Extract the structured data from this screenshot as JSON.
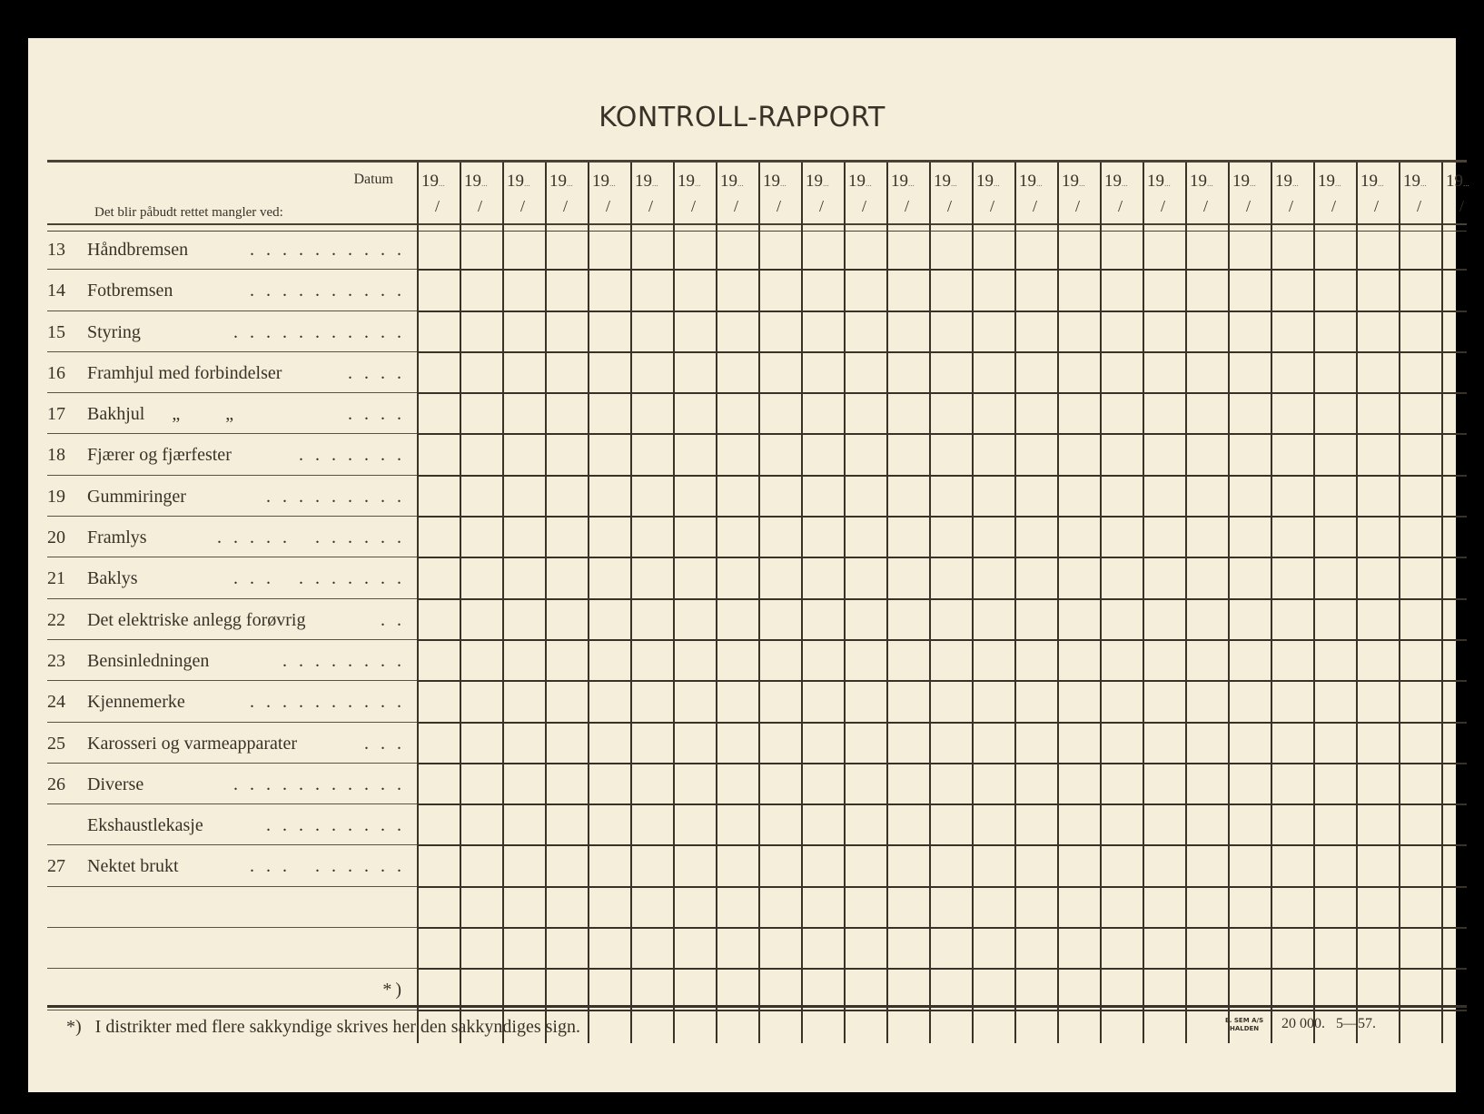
{
  "title": "KONTROLL-RAPPORT",
  "header": {
    "datum": "Datum",
    "subtitle": "Det blir påbudt rettet mangler ved:"
  },
  "date_columns": {
    "year_prefix": "19",
    "separator": "/",
    "count": 25
  },
  "rows": [
    {
      "num": "13",
      "label": "Håndbremsen",
      "dots": ". . . . . . . . . ."
    },
    {
      "num": "14",
      "label": "Fotbremsen",
      "dots": ". . . . . . . . . ."
    },
    {
      "num": "15",
      "label": "Styring",
      "dots": ". . . . . . . . . . ."
    },
    {
      "num": "16",
      "label": "Framhjul med forbindelser",
      "dots": ". . . ."
    },
    {
      "num": "17",
      "label": "Bakhjul      „          „",
      "dots": ". . . ."
    },
    {
      "num": "18",
      "label": "Fjærer og fjærfester",
      "dots": ". . . . . . ."
    },
    {
      "num": "19",
      "label": "Gummiringer",
      "dots": ". . . . . . . . ."
    },
    {
      "num": "20",
      "label": "Framlys",
      "dots": ". . . . .   . . . . . ."
    },
    {
      "num": "21",
      "label": "Baklys",
      "dots": ". . .   . . . . . . ."
    },
    {
      "num": "22",
      "label": "Det elektriske anlegg forøvrig",
      "dots": ". ."
    },
    {
      "num": "23",
      "label": "Bensinledningen",
      "dots": ". . . . . . . ."
    },
    {
      "num": "24",
      "label": "Kjennemerke",
      "dots": ". . . . . . . . . ."
    },
    {
      "num": "25",
      "label": "Karosseri og varmeapparater",
      "dots": ". . ."
    },
    {
      "num": "26",
      "label": "Diverse",
      "dots": ". . . . . . . . . . ."
    },
    {
      "num": "",
      "label": "Ekshaustlekasje",
      "dots": ". . . . . . . . ."
    },
    {
      "num": "27",
      "label": "Nektet brukt",
      "dots": ". . .   . . . . . ."
    },
    {
      "num": "",
      "label": "",
      "dots": ""
    },
    {
      "num": "",
      "label": "",
      "dots": ""
    },
    {
      "num": "",
      "label": "",
      "dots": "*)"
    }
  ],
  "footnote": "*)   I distrikter med flere sakkyndige skrives her den sakkyndiges sign.",
  "printer": {
    "line1": "E. SEM A/S",
    "line2": "HALDEN"
  },
  "edition": "20 000.   5—57."
}
